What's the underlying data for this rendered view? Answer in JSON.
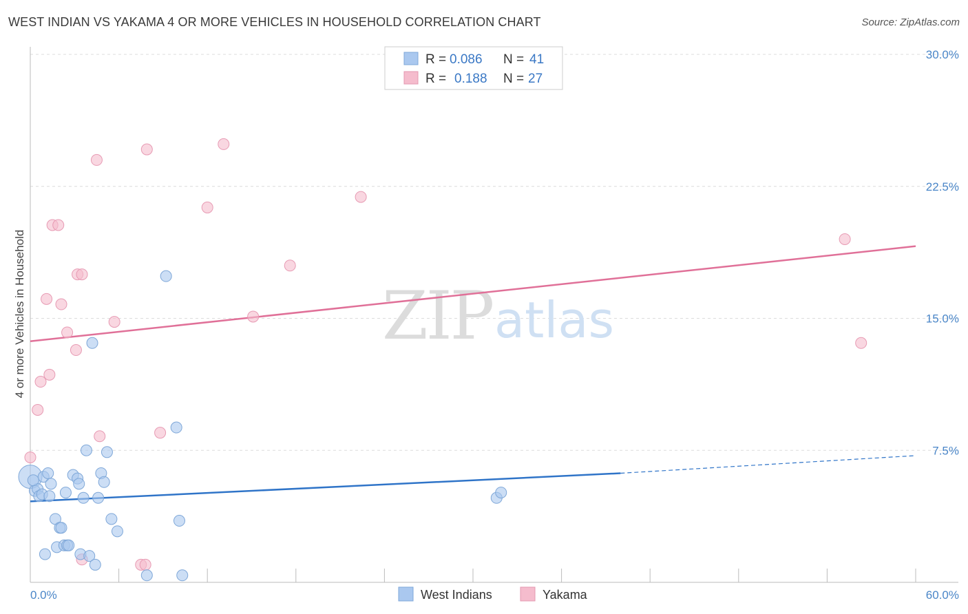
{
  "header": {
    "title": "WEST INDIAN VS YAKAMA 4 OR MORE VEHICLES IN HOUSEHOLD CORRELATION CHART",
    "source": "Source: ZipAtlas.com"
  },
  "watermark": {
    "zip": "ZIP",
    "atlas": "atlas"
  },
  "legend": {
    "rows": [
      {
        "r_label": "R =",
        "r_value": "0.086",
        "n_label": "N =",
        "n_value": "41"
      },
      {
        "r_label": "R =",
        "r_value": "0.188",
        "n_label": "N =",
        "n_value": "27"
      }
    ]
  },
  "bottom_legend": {
    "series1": "West Indians",
    "series2": "Yakama"
  },
  "colors": {
    "west_indians_fill": "#aac8ef",
    "west_indians_line": "#2f74c8",
    "yakama_fill": "#f5bccd",
    "yakama_line": "#e07098",
    "grid": "#dcdcdc",
    "tick_text": "#4a86c8"
  },
  "chart_data": {
    "type": "scatter",
    "title": "WEST INDIAN VS YAKAMA 4 OR MORE VEHICLES IN HOUSEHOLD CORRELATION CHART",
    "xlabel": "",
    "ylabel": "4 or more Vehicles in Household",
    "xlim": [
      0,
      60
    ],
    "ylim": [
      0,
      30
    ],
    "x_tick_labels": {
      "min": "0.0%",
      "max": "60.0%"
    },
    "y_ticks": [
      {
        "value": 7.5,
        "label": "7.5%"
      },
      {
        "value": 15.0,
        "label": "15.0%"
      },
      {
        "value": 22.5,
        "label": "22.5%"
      },
      {
        "value": 30.0,
        "label": "30.0%"
      }
    ],
    "grid": true,
    "legend_position": "top-center",
    "series": [
      {
        "name": "West Indians",
        "r": 0.086,
        "n": 41,
        "trend": {
          "x0": 0,
          "y0": 4.6,
          "x1": 40,
          "y1": 6.2,
          "dashed_to_x": 60,
          "dashed_to_y": 7.2
        },
        "points": [
          [
            0.0,
            6.0
          ],
          [
            0.3,
            5.2
          ],
          [
            0.5,
            5.3
          ],
          [
            0.6,
            4.9
          ],
          [
            0.8,
            5.0
          ],
          [
            0.9,
            6.0
          ],
          [
            1.0,
            1.6
          ],
          [
            1.2,
            6.2
          ],
          [
            1.3,
            4.9
          ],
          [
            1.4,
            5.6
          ],
          [
            1.7,
            3.6
          ],
          [
            1.8,
            2.0
          ],
          [
            2.0,
            3.1
          ],
          [
            2.1,
            3.1
          ],
          [
            2.3,
            2.1
          ],
          [
            2.4,
            5.1
          ],
          [
            2.5,
            2.1
          ],
          [
            2.6,
            2.1
          ],
          [
            2.9,
            6.1
          ],
          [
            3.2,
            5.9
          ],
          [
            3.3,
            5.6
          ],
          [
            3.4,
            1.6
          ],
          [
            3.6,
            4.8
          ],
          [
            3.8,
            7.5
          ],
          [
            4.0,
            1.5
          ],
          [
            4.2,
            13.6
          ],
          [
            4.4,
            1.0
          ],
          [
            4.6,
            4.8
          ],
          [
            4.8,
            6.2
          ],
          [
            5.0,
            5.7
          ],
          [
            5.2,
            7.4
          ],
          [
            5.5,
            3.6
          ],
          [
            5.9,
            2.9
          ],
          [
            7.9,
            0.4
          ],
          [
            9.9,
            8.8
          ],
          [
            10.1,
            3.5
          ],
          [
            10.3,
            0.4
          ],
          [
            9.2,
            17.4
          ],
          [
            31.6,
            4.8
          ],
          [
            31.9,
            5.1
          ],
          [
            0.2,
            5.8
          ]
        ]
      },
      {
        "name": "Yakama",
        "r": 0.188,
        "n": 27,
        "trend": {
          "x0": 0,
          "y0": 13.7,
          "x1": 60,
          "y1": 19.1
        },
        "points": [
          [
            0.0,
            7.1
          ],
          [
            0.5,
            9.8
          ],
          [
            0.7,
            11.4
          ],
          [
            1.1,
            16.1
          ],
          [
            1.3,
            11.8
          ],
          [
            1.5,
            20.3
          ],
          [
            1.9,
            20.3
          ],
          [
            2.1,
            15.8
          ],
          [
            2.5,
            14.2
          ],
          [
            3.1,
            13.2
          ],
          [
            3.2,
            17.5
          ],
          [
            3.5,
            17.5
          ],
          [
            3.5,
            1.3
          ],
          [
            4.5,
            24.0
          ],
          [
            4.7,
            8.3
          ],
          [
            5.7,
            14.8
          ],
          [
            7.5,
            1.0
          ],
          [
            7.8,
            1.0
          ],
          [
            7.9,
            24.6
          ],
          [
            8.8,
            8.5
          ],
          [
            12.0,
            21.3
          ],
          [
            13.1,
            24.9
          ],
          [
            15.1,
            15.1
          ],
          [
            17.6,
            18.0
          ],
          [
            22.4,
            21.9
          ],
          [
            55.2,
            19.5
          ],
          [
            56.3,
            13.6
          ]
        ]
      }
    ]
  }
}
